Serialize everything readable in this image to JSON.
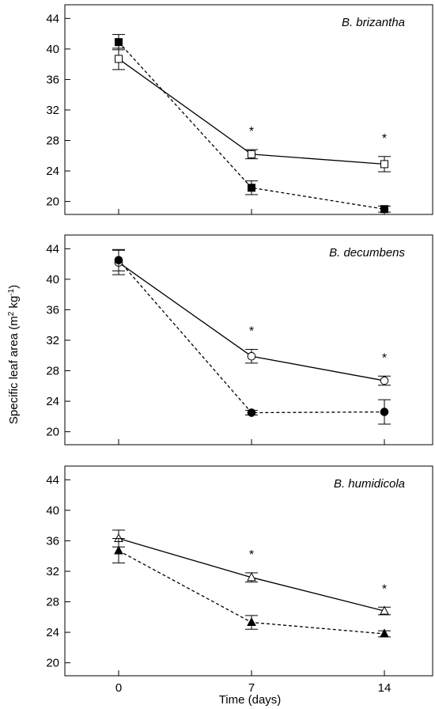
{
  "chart_data": {
    "type": "line",
    "xlabel": "Time (days)",
    "ylabel": "Specific leaf area (m² kg⁻¹)",
    "ylabel_parts": {
      "main": "Specific leaf area (m",
      "sup1": "2",
      "mid": " kg",
      "sup2": "-1",
      "end": ")"
    },
    "x_ticks": [
      "0",
      "7",
      "14"
    ],
    "y_ticks": [
      "20",
      "24",
      "28",
      "32",
      "36",
      "40",
      "44"
    ],
    "x_values": [
      0,
      7,
      14
    ],
    "ylim": [
      18.3,
      45.8
    ],
    "significance_marker": "*",
    "panels": [
      {
        "title": "B. brizantha",
        "marker": "square",
        "significant_at": [
          7,
          14
        ],
        "series": [
          {
            "fill": "open",
            "line": "solid",
            "values": [
              38.7,
              26.2,
              24.9
            ],
            "errors": [
              1.4,
              0.6,
              1.0
            ]
          },
          {
            "fill": "filled",
            "line": "dashed",
            "values": [
              40.9,
              21.8,
              19.0
            ],
            "errors": [
              1.0,
              0.9,
              0.4
            ]
          }
        ]
      },
      {
        "title": "B. decumbens",
        "marker": "circle",
        "significant_at": [
          7,
          14
        ],
        "series": [
          {
            "fill": "open",
            "line": "solid",
            "values": [
              42.2,
              29.9,
              26.7
            ],
            "errors": [
              1.6,
              0.9,
              0.6
            ]
          },
          {
            "fill": "filled",
            "line": "dashed",
            "values": [
              42.5,
              22.5,
              22.6
            ],
            "errors": [
              1.4,
              0.3,
              1.6
            ]
          }
        ]
      },
      {
        "title": "B. humidicola",
        "marker": "triangle",
        "significant_at": [
          7,
          14
        ],
        "series": [
          {
            "fill": "open",
            "line": "solid",
            "values": [
              36.3,
              31.2,
              26.8
            ],
            "errors": [
              1.1,
              0.6,
              0.5
            ]
          },
          {
            "fill": "filled",
            "line": "dashed",
            "values": [
              34.7,
              25.3,
              23.8
            ],
            "errors": [
              1.6,
              0.9,
              0.4
            ]
          }
        ]
      }
    ]
  }
}
